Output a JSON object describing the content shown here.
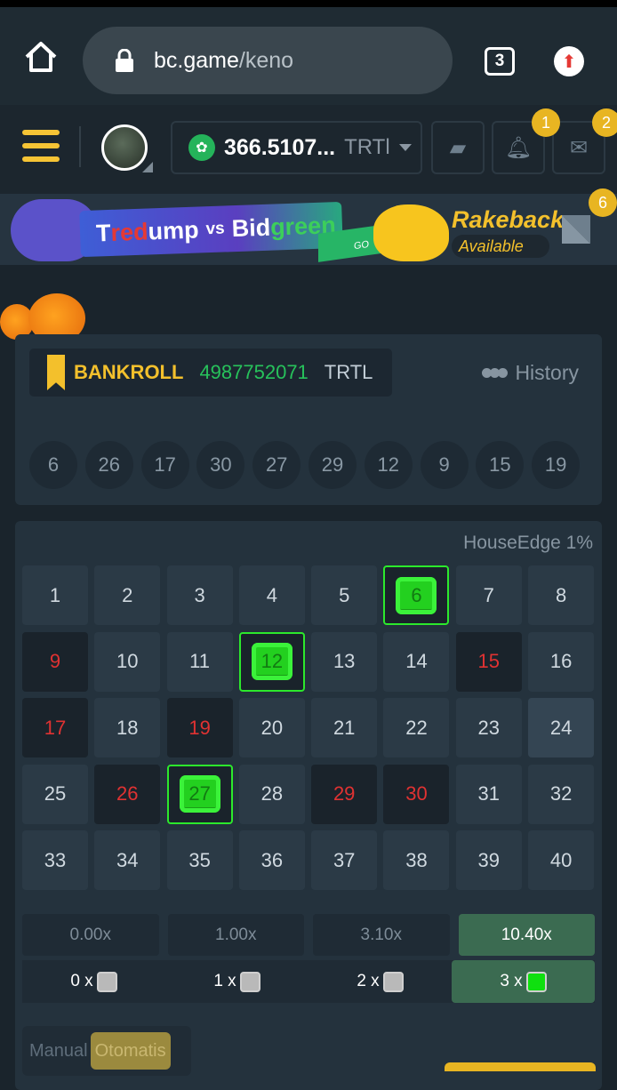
{
  "browser": {
    "url_host": "bc.game",
    "url_path": "/keno",
    "tab_count": "3"
  },
  "header": {
    "balance": "366.5107...",
    "currency": "TRTl",
    "badges": {
      "notifications": "1",
      "messages": "2",
      "banner": "6"
    }
  },
  "banner": {
    "title_parts": [
      "T",
      "red",
      "ump",
      "vs",
      "Bid",
      "green"
    ],
    "go": "GO",
    "rakeback": "Rakeback",
    "available": "Available"
  },
  "bankroll": {
    "label": "BANKROLL",
    "value": "4987752071",
    "currency": "TRTL",
    "history_label": "History"
  },
  "history": [
    "6",
    "26",
    "17",
    "30",
    "27",
    "29",
    "12",
    "9",
    "15",
    "19"
  ],
  "board": {
    "house_edge": "HouseEdge 1%",
    "numbers": [
      1,
      2,
      3,
      4,
      5,
      6,
      7,
      8,
      9,
      10,
      11,
      12,
      13,
      14,
      15,
      16,
      17,
      18,
      19,
      20,
      21,
      22,
      23,
      24,
      25,
      26,
      27,
      28,
      29,
      30,
      31,
      32,
      33,
      34,
      35,
      36,
      37,
      38,
      39,
      40
    ],
    "selected_hits": [
      6,
      12,
      27
    ],
    "drawn_misses": [
      9,
      15,
      17,
      19,
      26,
      29,
      30
    ],
    "hovered": [
      24
    ],
    "multipliers": [
      "0.00x",
      "1.00x",
      "3.10x",
      "10.40x"
    ],
    "active_multiplier_index": 3,
    "hit_labels": [
      "0 x",
      "1 x",
      "2 x",
      "3 x"
    ],
    "hit_gem_colors": [
      "#b9b9b9",
      "#b9b9b9",
      "#b9b9b9",
      "#0fe00f"
    ]
  },
  "modes": {
    "manual": "Manual",
    "auto": "Otomatis",
    "active": "auto"
  },
  "colors": {
    "accent": "#f3c02c",
    "hit": "#2ce92c",
    "miss": "#e03232",
    "win": "#3b6b51"
  }
}
